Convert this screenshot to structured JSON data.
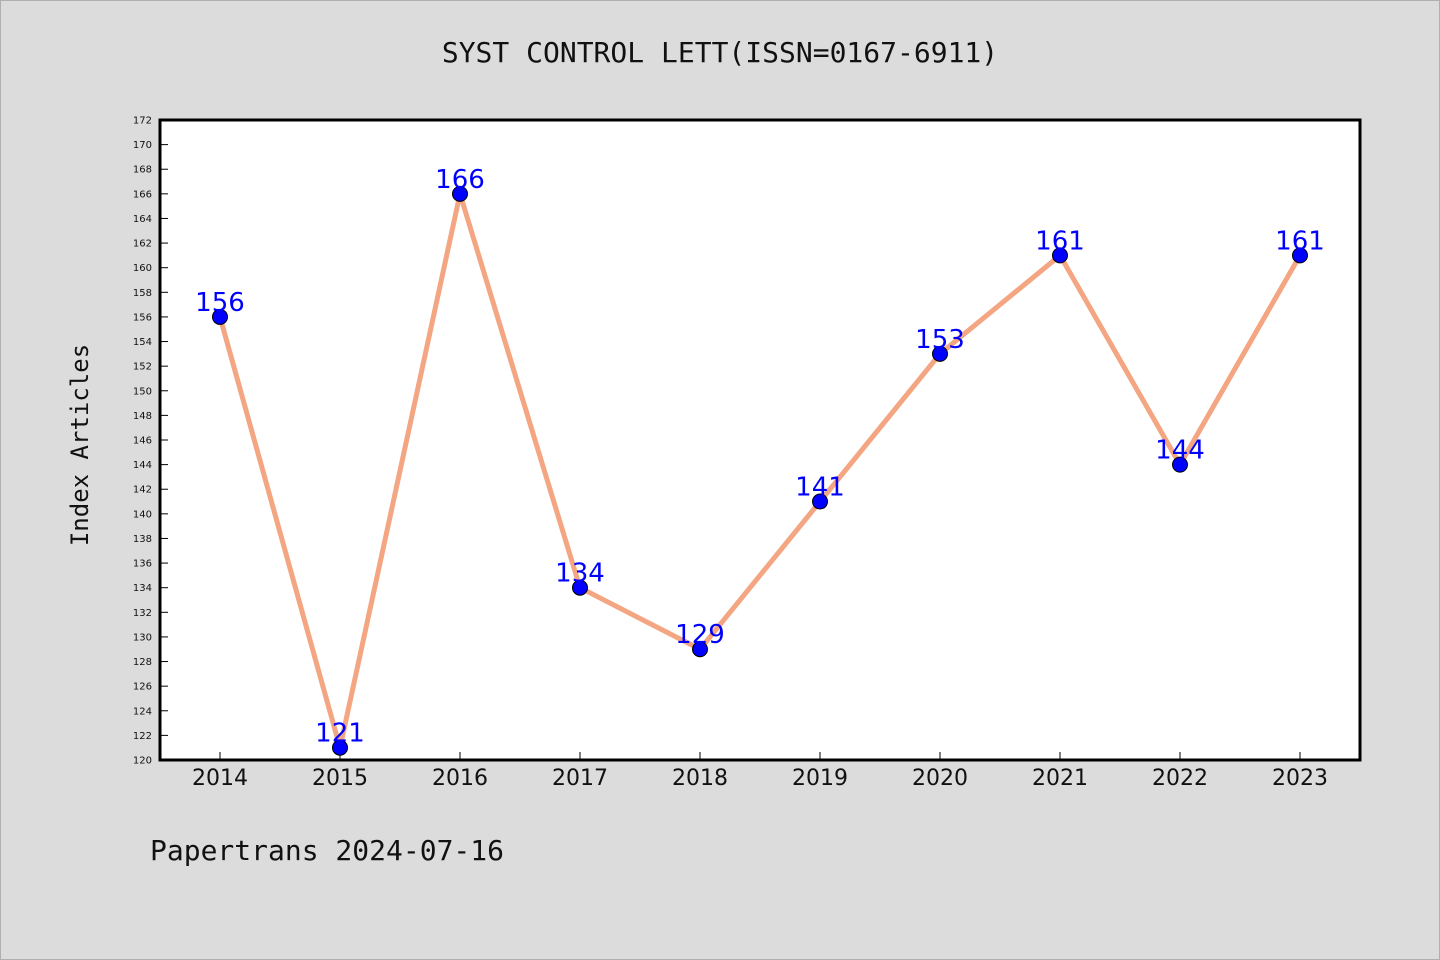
{
  "chart_data": {
    "type": "line",
    "title": "SYST CONTROL LETT(ISSN=0167-6911)",
    "xlabel": "",
    "ylabel": "Index Articles",
    "categories": [
      "2014",
      "2015",
      "2016",
      "2017",
      "2018",
      "2019",
      "2020",
      "2021",
      "2022",
      "2023"
    ],
    "series": [
      {
        "values": [
          156,
          121,
          166,
          134,
          129,
          141,
          153,
          161,
          144,
          161
        ]
      }
    ],
    "ylim": [
      120,
      172
    ],
    "ytick_step": 2,
    "grid": false,
    "data_labels": true,
    "colors": {
      "line": "#f4a582",
      "marker": "#0000ff",
      "label": "#0000ff",
      "plot_bg": "#ffffff",
      "page_bg": "#dcdcdc"
    }
  },
  "footer": "Papertrans 2024-07-16"
}
